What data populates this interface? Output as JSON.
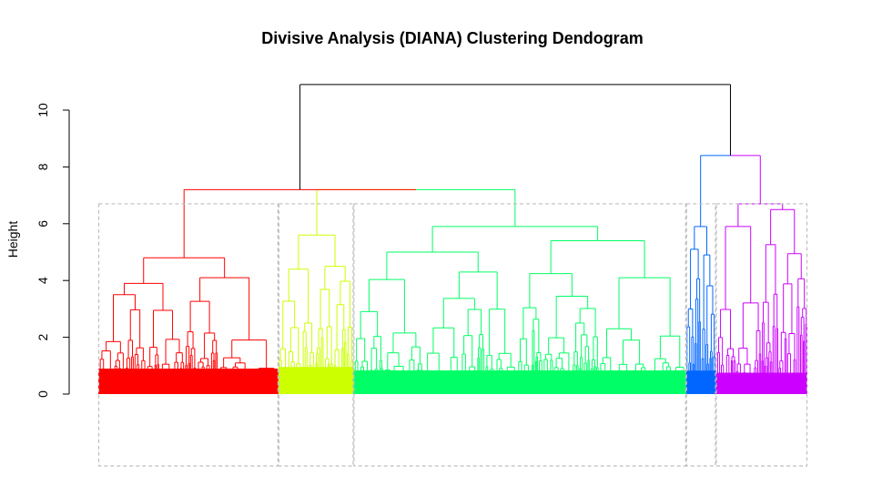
{
  "chart_data": {
    "type": "dendrogram",
    "title": "Divisive Analysis (DIANA) Clustering Dendogram",
    "xlabel": "",
    "ylabel": "Height",
    "ylim": [
      0,
      10
    ],
    "yticks": [
      0,
      2,
      4,
      6,
      8,
      10
    ],
    "ytick_labels": [
      "0",
      "2",
      "4",
      "6",
      "8",
      "10"
    ],
    "root_height": 10.9,
    "grid": false,
    "clusters": [
      {
        "id": 1,
        "color": "#FF0000",
        "leaf_share": 0.254,
        "merge_height": 4.8,
        "sub_heights": [
          3.9,
          4.1
        ]
      },
      {
        "id": 2,
        "color": "#CCFF00",
        "leaf_share": 0.106,
        "merge_height": 5.6,
        "sub_heights": [
          4.4,
          4.5
        ]
      },
      {
        "id": 3,
        "color": "#00FF66",
        "leaf_share": 0.469,
        "merge_height": 5.9,
        "sub_heights": [
          5.0,
          5.4
        ]
      },
      {
        "id": 4,
        "color": "#0066FF",
        "leaf_share": 0.042,
        "merge_height": 5.9,
        "sub_heights": [
          5.1,
          4.9
        ]
      },
      {
        "id": 5,
        "color": "#CC00FF",
        "leaf_share": 0.129,
        "merge_height": 6.7,
        "sub_heights": [
          5.9,
          6.5
        ]
      }
    ],
    "upper_merges": [
      {
        "joins": [
          "cluster1",
          "cluster2+3"
        ],
        "height": 7.2,
        "color": "#FF0000"
      },
      {
        "joins": [
          "cluster2",
          "cluster3"
        ],
        "height": 7.2,
        "color": "#CCFF00"
      },
      {
        "joins": [
          "cluster4",
          "cluster5"
        ],
        "height": 8.4,
        "color": "#0066FF"
      },
      {
        "joins": [
          "left",
          "right"
        ],
        "height": 10.9,
        "color": "#000000"
      }
    ],
    "cluster_boxes": {
      "style": "dashed",
      "color": "#BEBEBE"
    }
  }
}
